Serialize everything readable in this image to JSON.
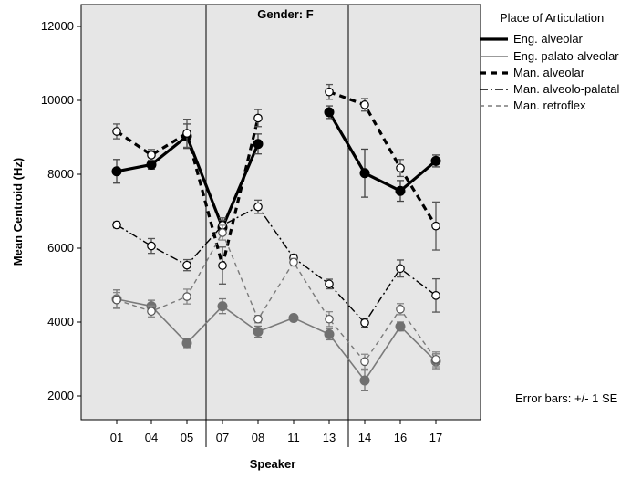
{
  "chart_data": {
    "type": "line",
    "panel_title": "Gender: F",
    "xlabel": "Speaker",
    "ylabel": "Mean Centroid (Hz)",
    "categories": [
      "01",
      "04",
      "05",
      "07",
      "08",
      "11",
      "13",
      "14",
      "16",
      "17"
    ],
    "ylim": [
      1300,
      12600
    ],
    "yticks": [
      2000,
      4000,
      6000,
      8000,
      10000,
      12000
    ],
    "grid": false,
    "legend_title": "Place of Articulation",
    "legend_position": "right",
    "note": "Error bars: +/- 1 SE",
    "colors": {
      "plot_bg": "#e6e6e6",
      "black": "#000000",
      "gray": "#7a7a7a",
      "filled_gray": "#707070"
    },
    "series": [
      {
        "name": "Eng. alveolar",
        "style": "solid-thick",
        "marker": "filled",
        "values": [
          8080,
          8260,
          9030,
          6560,
          8820,
          null,
          9680,
          8030,
          7550,
          8360
        ],
        "se": [
          320,
          120,
          330,
          200,
          270,
          null,
          170,
          650,
          280,
          160
        ]
      },
      {
        "name": "Eng. palato-alveolar",
        "style": "solid-thin-gray",
        "marker": "filled",
        "values": [
          4620,
          4430,
          3430,
          4430,
          3740,
          4110,
          3670,
          2420,
          3880,
          2940
        ],
        "se": [
          250,
          160,
          120,
          200,
          150,
          80,
          150,
          280,
          120,
          200
        ]
      },
      {
        "name": "Man. alveolar",
        "style": "dashed-thick",
        "marker": "open",
        "values": [
          9160,
          8520,
          9110,
          5530,
          9520,
          null,
          10230,
          9880,
          8170,
          6600
        ],
        "se": [
          200,
          150,
          380,
          500,
          230,
          null,
          200,
          170,
          230,
          650
        ]
      },
      {
        "name": "Man. alveolo-palatal",
        "style": "dashdot",
        "marker": "open",
        "values": [
          6630,
          6060,
          5540,
          6620,
          7120,
          5740,
          5030,
          3980,
          5450,
          4720
        ],
        "se": [
          80,
          200,
          150,
          200,
          180,
          90,
          130,
          120,
          230,
          450
        ]
      },
      {
        "name": "Man. retroflex",
        "style": "dashed-thin-gray",
        "marker": "open",
        "values": [
          4600,
          4290,
          4690,
          6420,
          4080,
          5620,
          4080,
          2930,
          4350,
          2990
        ],
        "se": [
          200,
          150,
          200,
          200,
          100,
          100,
          200,
          200,
          150,
          200
        ]
      }
    ]
  }
}
